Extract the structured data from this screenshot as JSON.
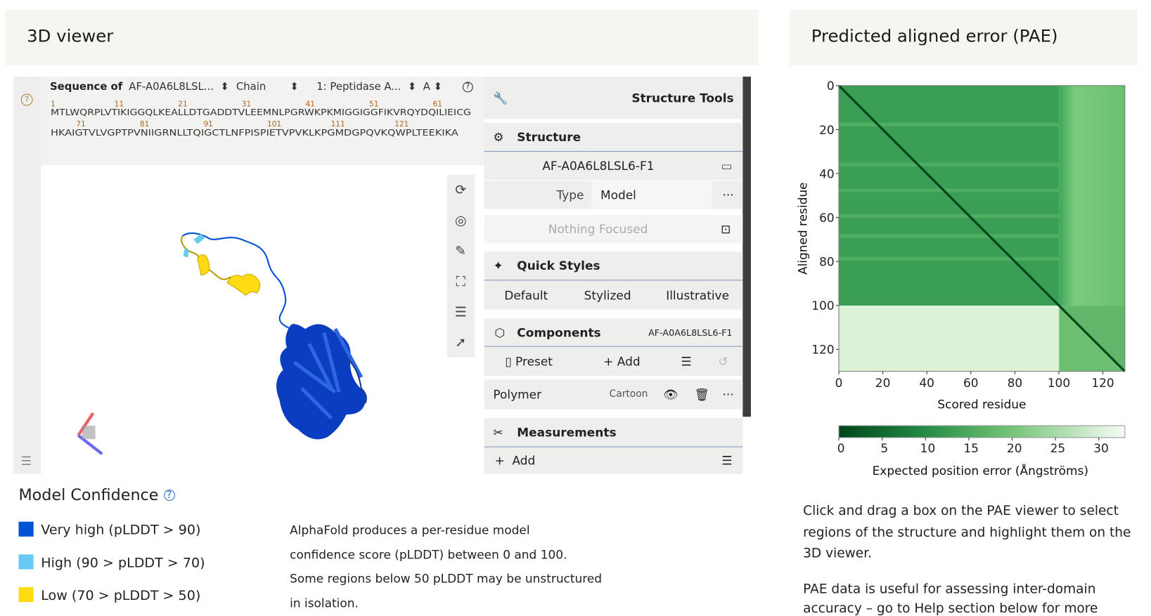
{
  "viewer": {
    "title": "3D viewer",
    "sequence": {
      "label": "Sequence of",
      "entry": "AF-A0A6L8LSL...",
      "chain": "Chain",
      "entity": "1: Peptidase A...",
      "chain_id": "A",
      "rows": [
        {
          "ticks": [
            1,
            11,
            21,
            31,
            41,
            51,
            61
          ],
          "residues": "MTLWQRPLVTIKIGGQLKEALLDTGADDTVLEEMNLPGRWKPKMIGGIGGFIKVRQYDQILIEICG"
        },
        {
          "ticks": [
            71,
            81,
            91,
            101,
            111,
            121
          ],
          "residues": "HKAIGTVLVGPTPVNIIGRNLLTQIGCTLNFPISPIETVPVKLKPGMDGPQVKQWPLTEEKIKA"
        }
      ]
    }
  },
  "tools": {
    "title": "Structure Tools",
    "structure": {
      "title": "Structure",
      "entry": "AF-A0A6L8LSL6-F1",
      "type_label": "Type",
      "type_value": "Model",
      "focus": "Nothing Focused"
    },
    "quick_styles": {
      "title": "Quick Styles",
      "options": [
        "Default",
        "Stylized",
        "Illustrative"
      ]
    },
    "components": {
      "title": "Components",
      "entry": "AF-A0A6L8LSL6-F1",
      "preset": "Preset",
      "add": "Add",
      "polymer": "Polymer",
      "representation": "Cartoon"
    },
    "measurements": {
      "title": "Measurements",
      "add": "Add"
    }
  },
  "confidence": {
    "title": "Model Confidence",
    "legend": [
      {
        "label": "Very high (pLDDT > 90)",
        "color": "#0053d6"
      },
      {
        "label": "High (90 > pLDDT > 70)",
        "color": "#65cbf3"
      },
      {
        "label": "Low (70 > pLDDT > 50)",
        "color": "#ffdb13"
      }
    ],
    "description": [
      "AlphaFold produces a per-residue model",
      "confidence score (pLDDT) between 0 and 100.",
      "Some regions below 50 pLDDT may be unstructured",
      "in isolation."
    ]
  },
  "pae": {
    "title": "Predicted aligned error (PAE)",
    "xlabel": "Scored residue",
    "ylabel": "Aligned residue",
    "xlim": [
      0,
      130
    ],
    "ylim": [
      0,
      130
    ],
    "xticks": [
      0,
      20,
      40,
      60,
      80,
      100,
      120
    ],
    "yticks": [
      0,
      20,
      40,
      60,
      80,
      100,
      120
    ],
    "colorbar": {
      "label": "Expected position error (Ångströms)",
      "lim": [
        0,
        33
      ],
      "ticks": [
        0,
        5,
        10,
        15,
        20,
        25,
        30
      ]
    },
    "description": [
      "Click and drag a box on the PAE viewer to select",
      "regions of the structure and highlight them on the",
      "3D viewer."
    ],
    "description2": [
      "PAE data is useful for assessing inter-domain",
      "accuracy – go to Help section below for more"
    ]
  }
}
